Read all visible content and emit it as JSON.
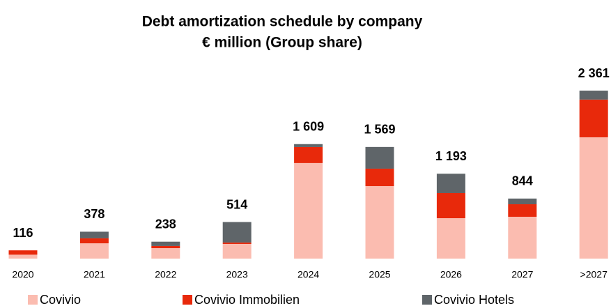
{
  "chart_data": {
    "type": "bar",
    "stacked": true,
    "title": "Debt amortization schedule by company",
    "subtitle": "€ million (Group share)",
    "categories": [
      "2020",
      "2021",
      "2022",
      "2023",
      "2024",
      "2025",
      "2026",
      "2027",
      ">2027"
    ],
    "series": [
      {
        "name": "Covivio",
        "color": "#fbbcb0",
        "values": [
          55,
          215,
          147,
          206,
          1343,
          1019,
          568,
          588,
          1705
        ]
      },
      {
        "name": "Covivio Immobilien",
        "color": "#e8290b",
        "values": [
          61,
          70,
          30,
          20,
          225,
          245,
          353,
          176,
          530
        ]
      },
      {
        "name": "Covivio Hotels",
        "color": "#5f6569",
        "values": [
          0,
          93,
          61,
          288,
          41,
          305,
          272,
          80,
          126
        ]
      }
    ],
    "totals": [
      116,
      378,
      238,
      514,
      1609,
      1569,
      1193,
      844,
      2361
    ],
    "total_labels": [
      "116",
      "378",
      "238",
      "514",
      "1 609",
      "1 569",
      "1 193",
      "844",
      "2 361"
    ]
  }
}
